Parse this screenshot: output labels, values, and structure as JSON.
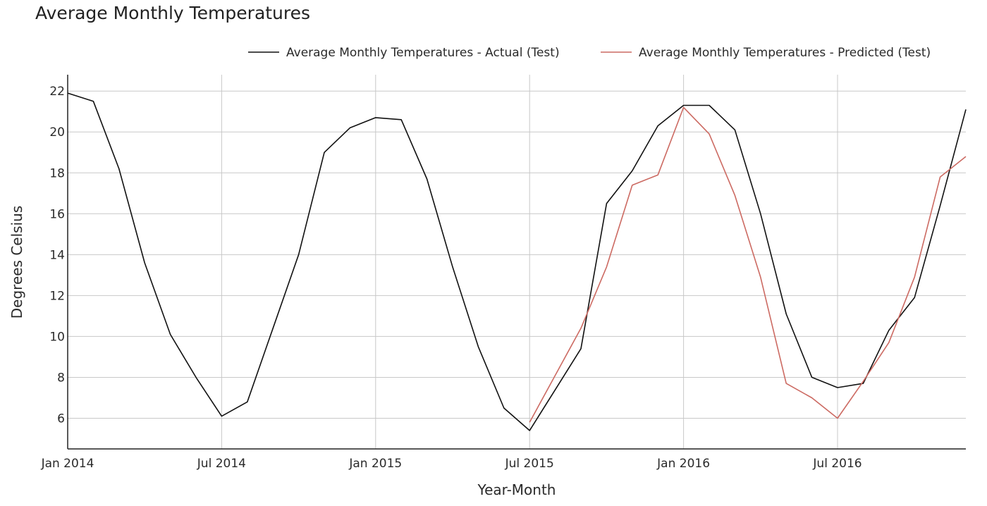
{
  "chart_data": {
    "type": "line",
    "title": "Average Monthly Temperatures",
    "xlabel": "Year-Month",
    "ylabel": "Degrees Celsius",
    "x_range": [
      "2014-01",
      "2016-12"
    ],
    "ylim": [
      4.5,
      22.8
    ],
    "y_ticks": [
      6,
      8,
      10,
      12,
      14,
      16,
      18,
      20,
      22
    ],
    "x_ticks": [
      {
        "date": "2014-01",
        "label": "Jan 2014"
      },
      {
        "date": "2014-07",
        "label": "Jul 2014"
      },
      {
        "date": "2015-01",
        "label": "Jan 2015"
      },
      {
        "date": "2015-07",
        "label": "Jul 2015"
      },
      {
        "date": "2016-01",
        "label": "Jan 2016"
      },
      {
        "date": "2016-07",
        "label": "Jul 2016"
      }
    ],
    "grid": true,
    "legend_position": "top-right",
    "series": [
      {
        "name": "Average Monthly Temperatures - Actual (Test)",
        "color": "#111111",
        "points": [
          [
            "2014-01",
            21.9
          ],
          [
            "2014-02",
            21.5
          ],
          [
            "2014-03",
            18.2
          ],
          [
            "2014-04",
            13.6
          ],
          [
            "2014-05",
            10.1
          ],
          [
            "2014-06",
            8.0
          ],
          [
            "2014-07",
            6.1
          ],
          [
            "2014-08",
            6.8
          ],
          [
            "2014-09",
            10.4
          ],
          [
            "2014-10",
            14.0
          ],
          [
            "2014-11",
            19.0
          ],
          [
            "2014-12",
            20.2
          ],
          [
            "2015-01",
            20.7
          ],
          [
            "2015-02",
            20.6
          ],
          [
            "2015-03",
            17.7
          ],
          [
            "2015-04",
            13.4
          ],
          [
            "2015-05",
            9.5
          ],
          [
            "2015-06",
            6.5
          ],
          [
            "2015-07",
            5.4
          ],
          [
            "2015-08",
            7.4
          ],
          [
            "2015-09",
            9.4
          ],
          [
            "2015-10",
            16.5
          ],
          [
            "2015-11",
            18.1
          ],
          [
            "2015-12",
            20.3
          ],
          [
            "2016-01",
            21.3
          ],
          [
            "2016-02",
            21.3
          ],
          [
            "2016-03",
            20.1
          ],
          [
            "2016-04",
            16.0
          ],
          [
            "2016-05",
            11.1
          ],
          [
            "2016-06",
            8.0
          ],
          [
            "2016-07",
            7.5
          ],
          [
            "2016-08",
            7.7
          ],
          [
            "2016-09",
            10.3
          ],
          [
            "2016-10",
            11.9
          ],
          [
            "2016-11",
            16.4
          ],
          [
            "2016-12",
            21.1
          ]
        ]
      },
      {
        "name": "Average Monthly Temperatures - Predicted (Test)",
        "color": "#cc6a62",
        "points": [
          [
            "2015-07",
            5.8
          ],
          [
            "2015-08",
            8.1
          ],
          [
            "2015-09",
            10.4
          ],
          [
            "2015-10",
            13.4
          ],
          [
            "2015-11",
            17.4
          ],
          [
            "2015-12",
            17.9
          ],
          [
            "2016-01",
            21.2
          ],
          [
            "2016-02",
            19.9
          ],
          [
            "2016-03",
            16.9
          ],
          [
            "2016-04",
            12.9
          ],
          [
            "2016-05",
            7.7
          ],
          [
            "2016-06",
            7.0
          ],
          [
            "2016-07",
            6.0
          ],
          [
            "2016-08",
            7.8
          ],
          [
            "2016-09",
            9.7
          ],
          [
            "2016-10",
            12.9
          ],
          [
            "2016-11",
            17.8
          ],
          [
            "2016-12",
            18.8
          ]
        ]
      }
    ]
  }
}
